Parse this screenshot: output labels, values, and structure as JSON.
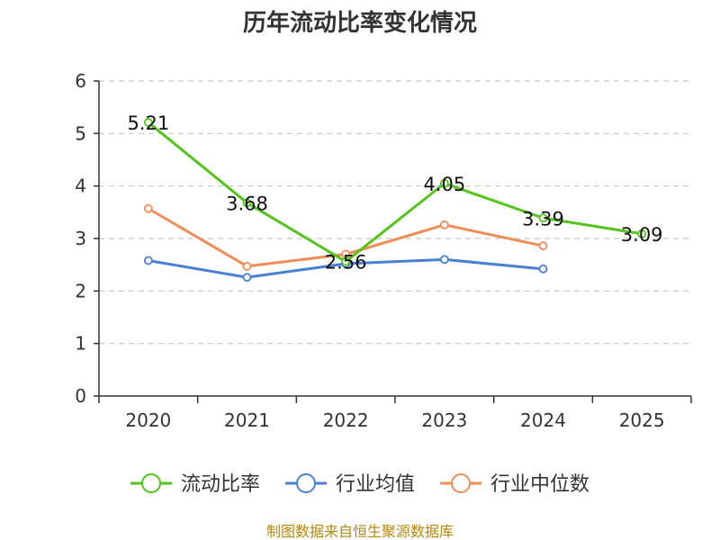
{
  "chart_data": {
    "type": "line",
    "title": "历年流动比率变化情况",
    "categories": [
      "2020",
      "2021",
      "2022",
      "2023",
      "2024",
      "2025"
    ],
    "ylim": [
      0,
      6
    ],
    "yticks": [
      0,
      1,
      2,
      3,
      4,
      5,
      6
    ],
    "grid": true,
    "legend_position": "bottom",
    "series": [
      {
        "name": "流动比率",
        "color": "#52c41a",
        "values": [
          5.21,
          3.68,
          2.56,
          4.05,
          3.39,
          3.09
        ],
        "labels": [
          "5.21",
          "3.68",
          "2.56",
          "4.05",
          "3.39",
          "3.09"
        ]
      },
      {
        "name": "行业均值",
        "color": "#4a7fd6",
        "values": [
          2.58,
          2.26,
          2.52,
          2.6,
          2.42,
          null
        ]
      },
      {
        "name": "行业中位数",
        "color": "#f28c55",
        "values": [
          3.57,
          2.47,
          2.7,
          3.26,
          2.86,
          null
        ]
      }
    ],
    "source": "制图数据来自恒生聚源数据库"
  }
}
